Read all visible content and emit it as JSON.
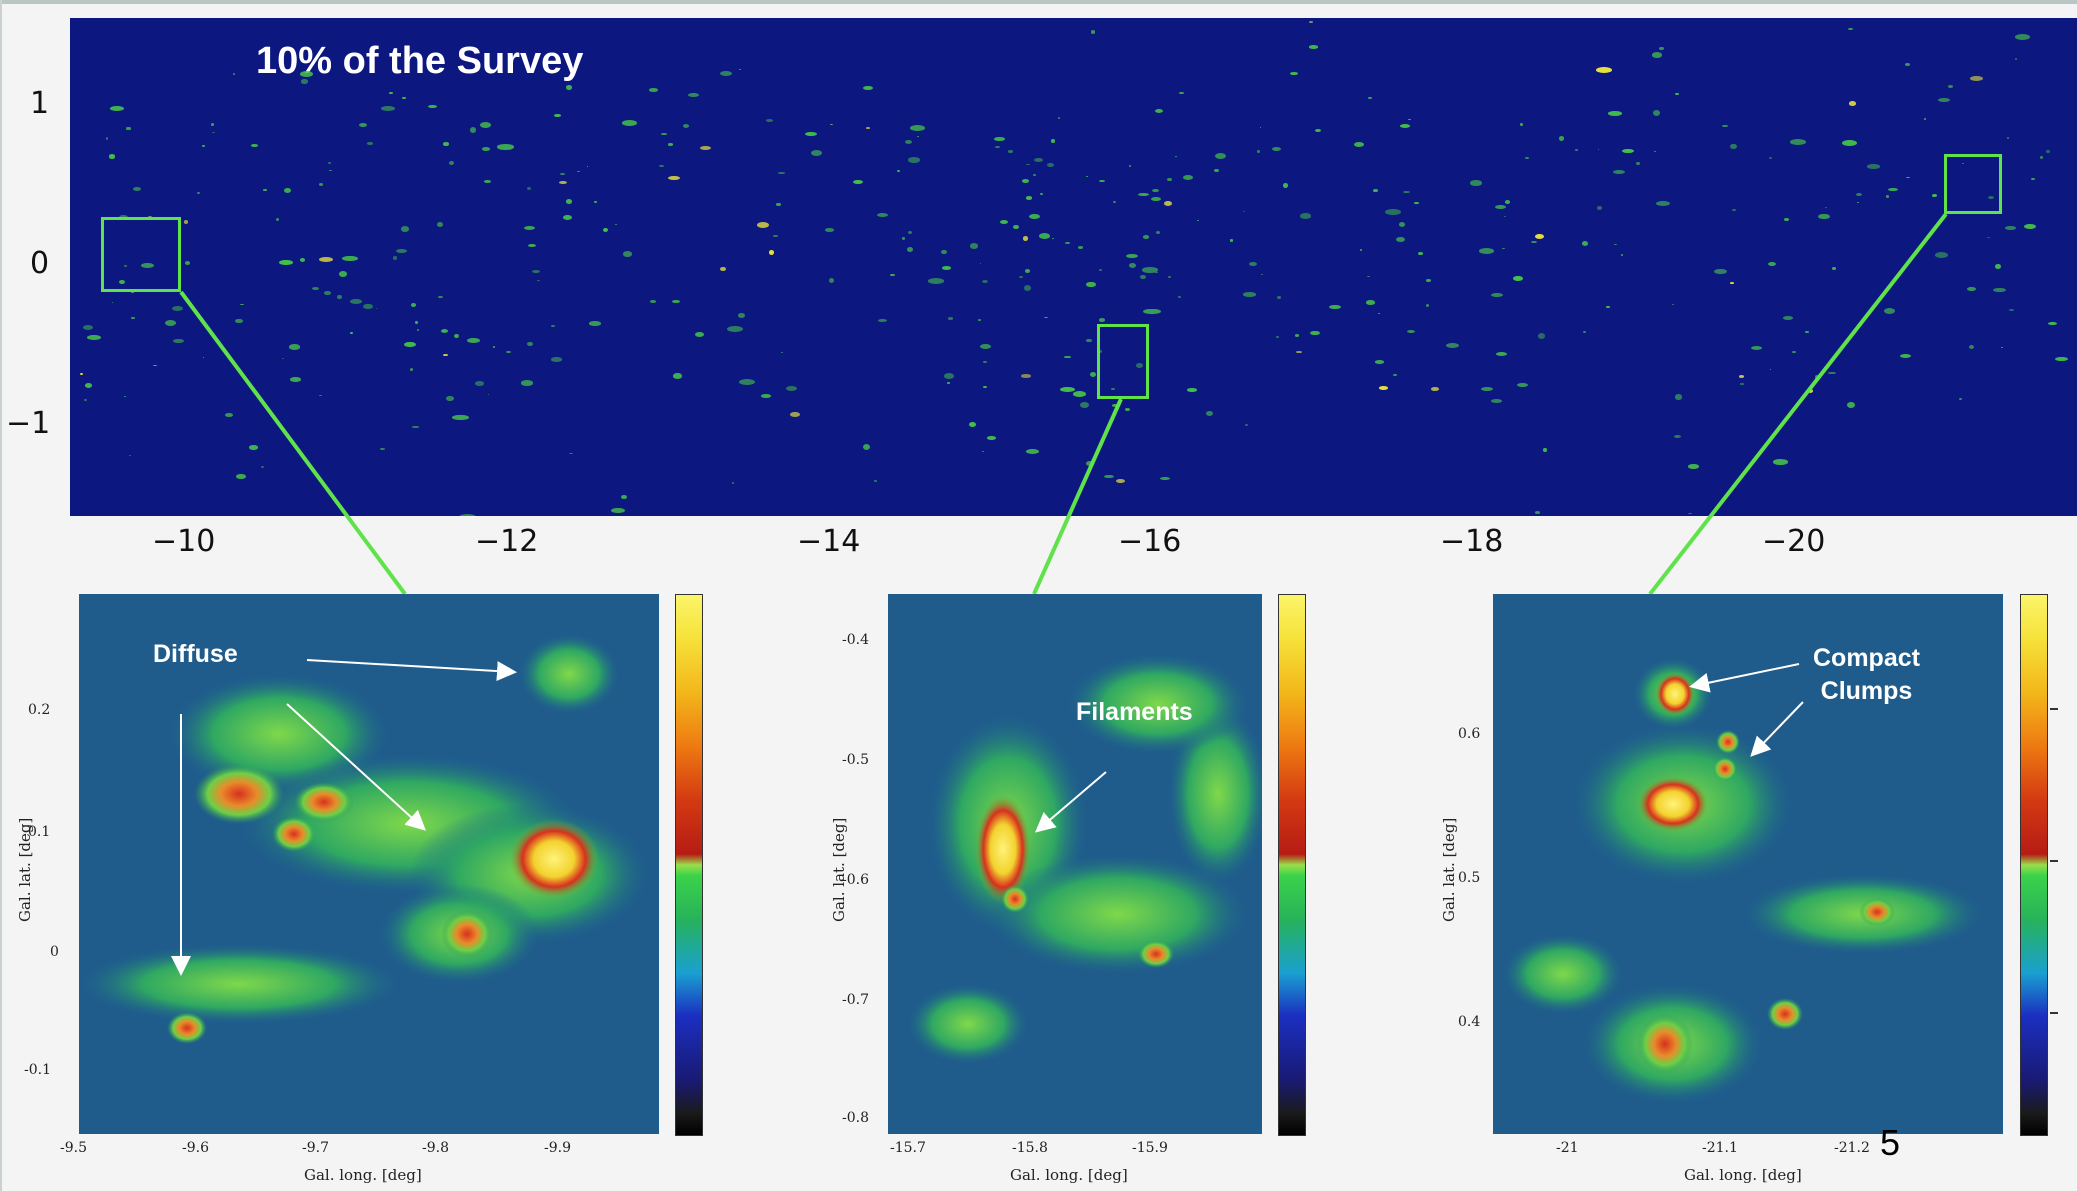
{
  "survey": {
    "title": "10% of the Survey",
    "y_ticks": [
      "1",
      "0",
      "−1"
    ],
    "x_ticks": [
      "−10",
      "−12",
      "−14",
      "−16",
      "−18",
      "−20"
    ]
  },
  "panels": [
    {
      "annotation": "Diffuse",
      "x_ticks": [
        "-9.5",
        "-9.6",
        "-9.7",
        "-9.8",
        "-9.9"
      ],
      "y_ticks": [
        "0.2",
        "0.1",
        "0",
        "-0.1"
      ],
      "xlabel": "Gal. long. [deg]",
      "ylabel": "Gal. lat. [deg]"
    },
    {
      "annotation": "Filaments",
      "x_ticks": [
        "-15.7",
        "-15.8",
        "-15.9"
      ],
      "y_ticks": [
        "-0.4",
        "-0.5",
        "-0.6",
        "-0.7",
        "-0.8"
      ],
      "xlabel": "Gal. long. [deg]",
      "ylabel": "Gal. lat. [deg]"
    },
    {
      "annotation_line1": "Compact",
      "annotation_line2": "Clumps",
      "x_ticks": [
        "-21",
        "-21.1",
        "-21.2"
      ],
      "y_ticks": [
        "0.6",
        "0.5",
        "0.4"
      ],
      "xlabel": "Gal. long. [deg]",
      "ylabel": "Gal. lat. [deg]"
    }
  ],
  "slide_number": "5",
  "colors": {
    "survey_background": "#0c177f",
    "zoom_box": "#5fe24a",
    "panel_background": "#1e5b8a",
    "emission_low": "#43c04a",
    "emission_mid": "#e8e23c",
    "emission_high": "#d2342a"
  }
}
